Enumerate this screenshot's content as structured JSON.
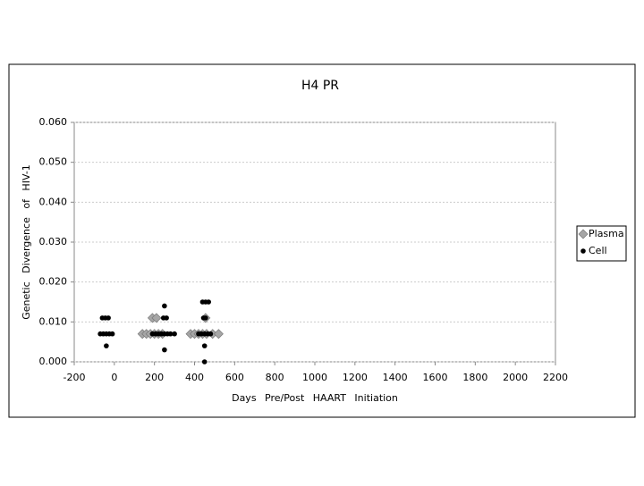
{
  "chart_data": {
    "type": "scatter",
    "title": "H4 PR",
    "xlabel": "Days Pre/Post HAART Initiation",
    "ylabel": "Genetic Divergence of HIV-1",
    "xlim": [
      -200,
      2200
    ],
    "xticks": [
      -200,
      0,
      200,
      400,
      600,
      800,
      1000,
      1200,
      1400,
      1600,
      1800,
      2000,
      2200
    ],
    "ylim": [
      0,
      0.06
    ],
    "yticks": [
      {
        "value": 0,
        "label": "0.000"
      },
      {
        "value": 0.01,
        "label": "0.010"
      },
      {
        "value": 0.02,
        "label": "0.020"
      },
      {
        "value": 0.03,
        "label": "0.030"
      },
      {
        "value": 0.04,
        "label": "0.040"
      },
      {
        "value": 0.05,
        "label": "0.050"
      },
      {
        "value": 0.06,
        "label": "0.060"
      }
    ],
    "grid": true,
    "legend": "right",
    "series": [
      {
        "name": "Plasma",
        "color": "#a6a6a6",
        "marker": "diamond",
        "x": [
          140,
          160,
          180,
          200,
          220,
          240,
          190,
          210,
          380,
          400,
          420,
          440,
          460,
          490,
          520,
          455
        ],
        "values": [
          0.007,
          0.007,
          0.007,
          0.007,
          0.007,
          0.007,
          0.011,
          0.011,
          0.007,
          0.007,
          0.007,
          0.007,
          0.007,
          0.007,
          0.007,
          0.011
        ]
      },
      {
        "name": "Cell",
        "color": "#000000",
        "marker": "circle",
        "x": [
          -70,
          -55,
          -40,
          -25,
          -10,
          -60,
          -45,
          -30,
          -40,
          190,
          205,
          220,
          235,
          250,
          265,
          280,
          300,
          245,
          260,
          250,
          250,
          420,
          435,
          450,
          465,
          480,
          440,
          455,
          470,
          445,
          455,
          450,
          450
        ],
        "values": [
          0.007,
          0.007,
          0.007,
          0.007,
          0.007,
          0.011,
          0.011,
          0.011,
          0.004,
          0.007,
          0.007,
          0.007,
          0.007,
          0.007,
          0.007,
          0.007,
          0.007,
          0.011,
          0.011,
          0.014,
          0.003,
          0.007,
          0.007,
          0.007,
          0.007,
          0.007,
          0.015,
          0.015,
          0.015,
          0.011,
          0.011,
          0.004,
          0
        ]
      }
    ]
  }
}
